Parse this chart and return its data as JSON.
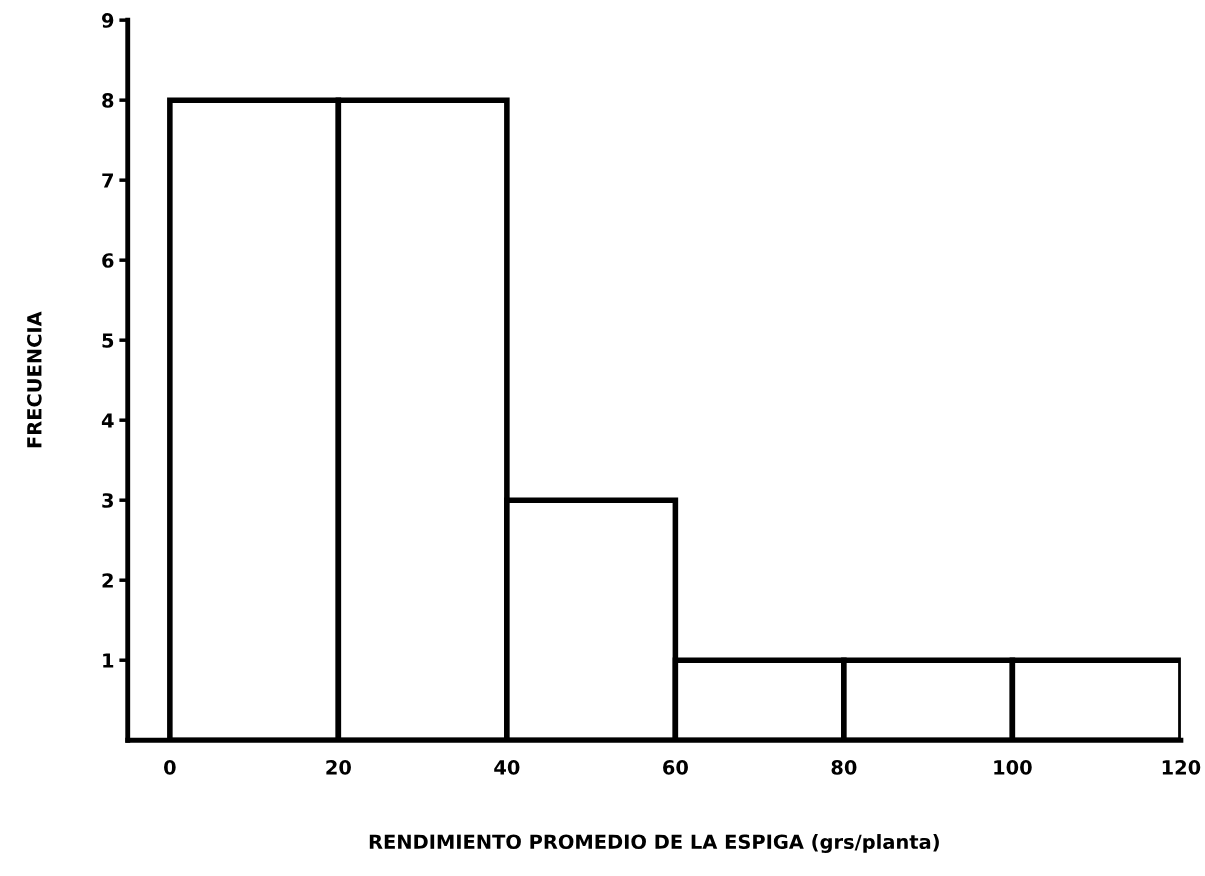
{
  "chart_data": {
    "type": "histogram",
    "xlabel": "RENDIMIENTO PROMEDIO DE LA ESPIGA (grs/planta)",
    "ylabel": "FRECUENCIA",
    "bins": [
      0,
      20,
      40,
      60,
      80,
      100,
      120
    ],
    "values": [
      8,
      8,
      3,
      1,
      1,
      1
    ],
    "color": "#ffffff",
    "xlim": [
      -5,
      120
    ],
    "ylim": [
      0,
      9
    ],
    "xticks": [
      0,
      20,
      40,
      60,
      80,
      100,
      120
    ],
    "yticks": [
      1,
      2,
      3,
      4,
      5,
      6,
      7,
      8,
      9
    ],
    "grid": false,
    "legend": false
  }
}
